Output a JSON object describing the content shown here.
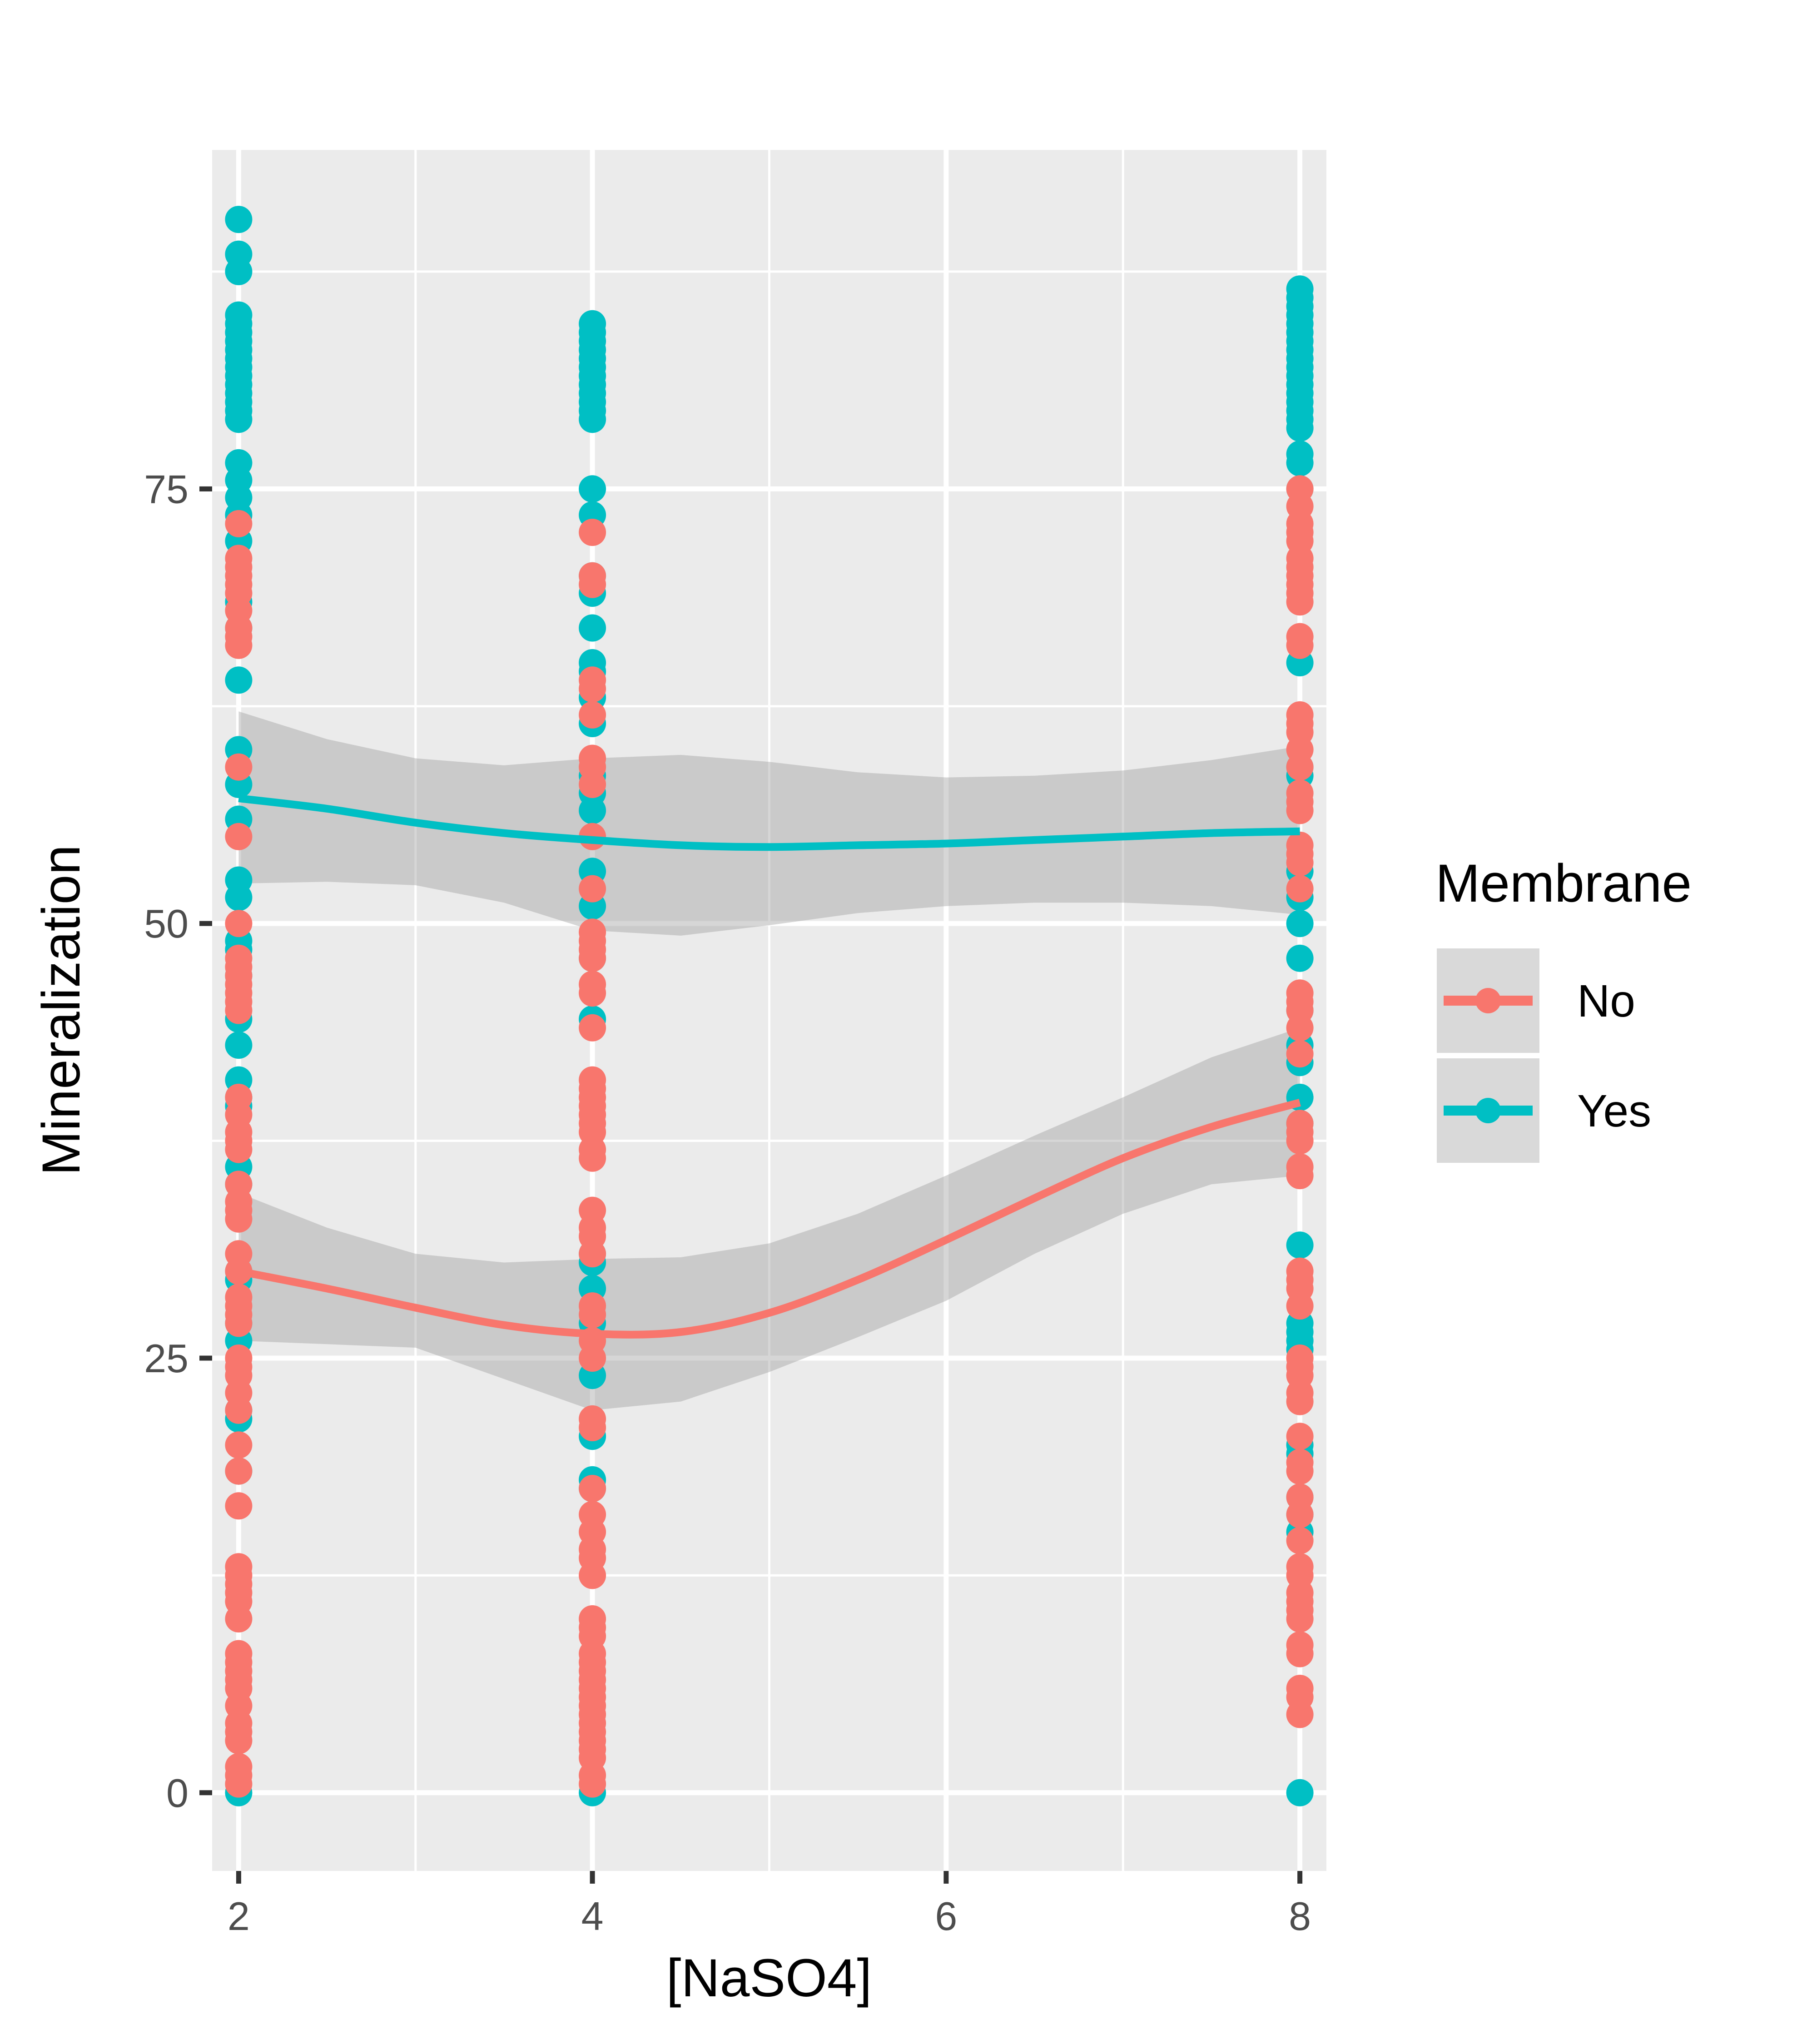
{
  "chart_data": {
    "type": "scatter",
    "xlabel": "[NaSO4]",
    "ylabel": "Mineralization",
    "xlim": [
      1.85,
      8.15
    ],
    "ylim": [
      -4.5,
      94.5
    ],
    "x_ticks": [
      2,
      4,
      6,
      8
    ],
    "x_tick_labels": [
      "2",
      "4",
      "6",
      "8"
    ],
    "y_ticks": [
      0,
      25,
      50,
      75
    ],
    "y_tick_labels": [
      "0",
      "25",
      "50",
      "75"
    ],
    "y_minor_ticks": [
      12.5,
      37.5,
      62.5,
      87.5
    ],
    "x_minor_ticks": [
      3,
      5,
      7
    ],
    "grid": true,
    "legend": {
      "title": "Membrane",
      "position": "right",
      "entries": [
        "No",
        "Yes"
      ]
    },
    "colors": {
      "No": "#F8766D",
      "Yes": "#00BFC4",
      "panel": "#EBEBEB",
      "grid": "#FFFFFF",
      "ribbon": "#999999"
    },
    "series": [
      {
        "name": "No",
        "color": "#F8766D",
        "points": {
          "2": [
            73,
            71,
            70.5,
            70,
            69.5,
            69,
            68,
            67,
            66.5,
            66,
            59,
            55,
            50,
            48,
            47.5,
            47,
            46.5,
            46,
            45.5,
            45,
            40,
            39,
            38,
            37.5,
            37,
            35,
            34,
            33.5,
            33,
            31,
            30,
            28.5,
            28,
            27.5,
            27,
            25,
            24.5,
            24,
            23,
            22,
            20,
            18.5,
            16.5,
            13,
            12.5,
            12,
            11.5,
            11,
            10,
            8,
            7.5,
            7,
            6.5,
            6,
            5,
            4,
            3.5,
            3,
            1.5,
            1,
            0.5
          ],
          "4": [
            72.5,
            70,
            69.5,
            64,
            63.5,
            62,
            59.5,
            59,
            58,
            55,
            52,
            49.5,
            49,
            48.5,
            48,
            46.5,
            46,
            44,
            41,
            40.5,
            40,
            39.5,
            39,
            38.5,
            38,
            37,
            36.5,
            33.5,
            32.5,
            32,
            31,
            28,
            27.5,
            26,
            25,
            21.5,
            21,
            17.5,
            16,
            15,
            14,
            13.5,
            12.5,
            10,
            9.5,
            9,
            8,
            7.5,
            7,
            6.5,
            6,
            5.5,
            5,
            4.5,
            4,
            3.5,
            3,
            2.5,
            2,
            1,
            0.5
          ],
          "8": [
            75,
            74,
            73,
            72.5,
            72,
            71,
            70.5,
            70,
            69.5,
            69,
            68.5,
            66.5,
            66,
            62,
            61.5,
            61,
            60,
            59,
            57.5,
            57,
            56.5,
            54.5,
            54,
            53.5,
            52,
            46,
            45.5,
            45,
            44,
            42.5,
            38.5,
            38,
            37.5,
            36,
            35.5,
            30,
            29.5,
            29,
            28,
            25,
            24.5,
            24,
            23,
            22.5,
            20.5,
            19,
            18.5,
            17,
            16,
            14.5,
            13,
            12.5,
            11.5,
            11,
            10.5,
            10,
            8.5,
            8,
            6,
            5.5,
            4.5
          ]
        },
        "smooth": {
          "x": [
            2,
            2.5,
            3,
            3.5,
            4,
            4.5,
            5,
            5.5,
            6,
            6.5,
            7,
            7.5,
            8
          ],
          "y": [
            30,
            29,
            27.9,
            26.9,
            26.4,
            26.5,
            27.6,
            29.5,
            31.8,
            34.2,
            36.5,
            38.3,
            39.7
          ],
          "lower": [
            26,
            25.8,
            25.6,
            23.8,
            22,
            22.5,
            24.2,
            26.2,
            28.3,
            31,
            33.3,
            35,
            35.5
          ],
          "upper": [
            34.5,
            32.5,
            31,
            30.5,
            30.7,
            30.8,
            31.6,
            33.3,
            35.5,
            37.8,
            40,
            42.3,
            44
          ]
        }
      },
      {
        "name": "Yes",
        "color": "#00BFC4",
        "points": {
          "2": [
            90.5,
            88.5,
            87.5,
            85,
            84.5,
            84,
            83.5,
            83,
            82.5,
            82,
            81.5,
            81,
            80.5,
            80,
            79.5,
            79,
            76.5,
            75.5,
            74.5,
            73.5,
            72,
            68.5,
            67,
            64,
            60,
            58,
            56,
            52.5,
            51.5,
            49,
            48.5,
            47,
            44.5,
            43,
            41,
            40,
            39.5,
            36,
            35,
            30,
            29.5,
            27,
            26,
            22,
            21.5,
            18.5,
            0
          ],
          "4": [
            84.5,
            84,
            83.5,
            83,
            82.5,
            82,
            81.5,
            81,
            80.5,
            80,
            79.5,
            79,
            75,
            73.5,
            70,
            69,
            67,
            65,
            64.5,
            63,
            61.5,
            58.5,
            57.5,
            56.5,
            53,
            51,
            48,
            44.5,
            31,
            30.5,
            29,
            27,
            24,
            20.5,
            18,
            17.5,
            0
          ],
          "8": [
            86.5,
            86,
            85.5,
            85,
            84.5,
            84,
            83.5,
            83,
            82.5,
            82,
            81.5,
            81,
            80.5,
            80,
            79.5,
            79,
            78.5,
            77,
            76.5,
            75,
            65,
            59,
            58.5,
            53,
            51.5,
            50,
            48,
            45,
            43,
            42,
            40,
            38.5,
            31.5,
            27,
            26.5,
            26,
            25.5,
            20,
            19.5,
            17,
            16,
            15,
            0
          ]
        },
        "smooth": {
          "x": [
            2,
            2.5,
            3,
            3.5,
            4,
            4.5,
            5,
            5.5,
            6,
            6.5,
            7,
            7.5,
            8
          ],
          "y": [
            57.2,
            56.6,
            55.8,
            55.2,
            54.8,
            54.5,
            54.4,
            54.5,
            54.6,
            54.8,
            55,
            55.2,
            55.3
          ],
          "lower": [
            52.3,
            52.4,
            52.2,
            51.2,
            49.6,
            49.3,
            49.9,
            50.6,
            51,
            51.2,
            51.2,
            51,
            50.5
          ],
          "upper": [
            62.2,
            60.6,
            59.5,
            59.1,
            59.5,
            59.7,
            59.3,
            58.7,
            58.4,
            58.5,
            58.8,
            59.4,
            60.2
          ]
        }
      }
    ]
  }
}
